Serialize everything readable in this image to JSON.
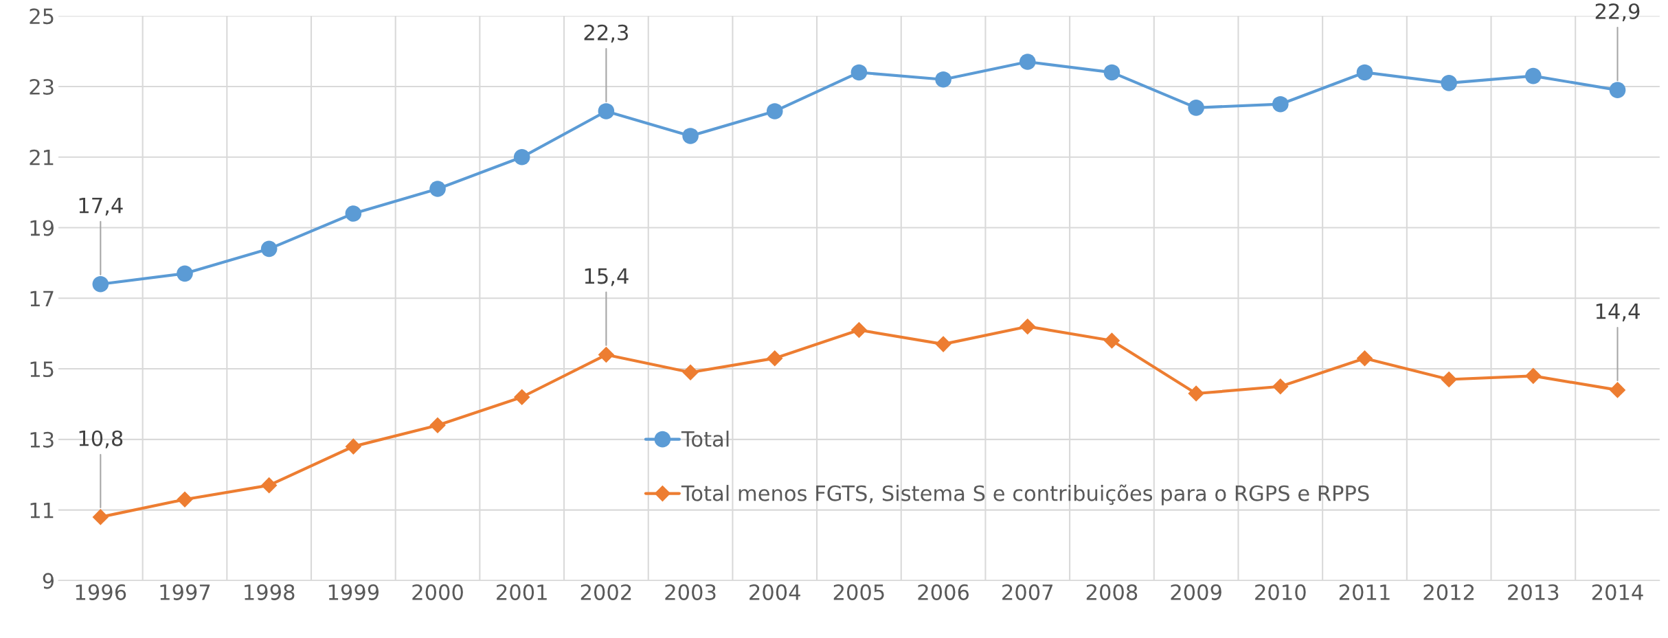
{
  "chart_data": {
    "type": "line",
    "categories": [
      "1996",
      "1997",
      "1998",
      "1999",
      "2000",
      "2001",
      "2002",
      "2003",
      "2004",
      "2005",
      "2006",
      "2007",
      "2008",
      "2009",
      "2010",
      "2011",
      "2012",
      "2013",
      "2014"
    ],
    "series": [
      {
        "name": "Total",
        "color": "#5b9bd5",
        "marker": "circle",
        "values": [
          17.4,
          17.7,
          18.4,
          19.4,
          20.1,
          21.0,
          22.3,
          21.6,
          22.3,
          23.4,
          23.2,
          23.7,
          23.4,
          22.4,
          22.5,
          23.4,
          23.1,
          23.3,
          22.9
        ],
        "value_labels": [
          "17,4",
          null,
          null,
          null,
          null,
          null,
          "22,3",
          null,
          null,
          null,
          null,
          null,
          null,
          null,
          null,
          null,
          null,
          null,
          "22,9"
        ]
      },
      {
        "name": "Total menos FGTS, Sistema S e contribuições para o RGPS e RPPS",
        "color": "#ed7d31",
        "marker": "diamond",
        "values": [
          10.8,
          11.3,
          11.7,
          12.8,
          13.4,
          14.2,
          15.4,
          14.9,
          15.3,
          16.1,
          15.7,
          16.2,
          15.8,
          14.3,
          14.5,
          15.3,
          14.7,
          14.8,
          14.4
        ],
        "value_labels": [
          "10,8",
          null,
          null,
          null,
          null,
          null,
          "15,4",
          null,
          null,
          null,
          null,
          null,
          null,
          null,
          null,
          null,
          null,
          null,
          "14,4"
        ]
      }
    ],
    "ylim": [
      9,
      25
    ],
    "yticks": [
      9,
      11,
      13,
      15,
      17,
      19,
      21,
      23,
      25
    ],
    "grid": true,
    "legend": "lower center",
    "line_style": "solid"
  }
}
